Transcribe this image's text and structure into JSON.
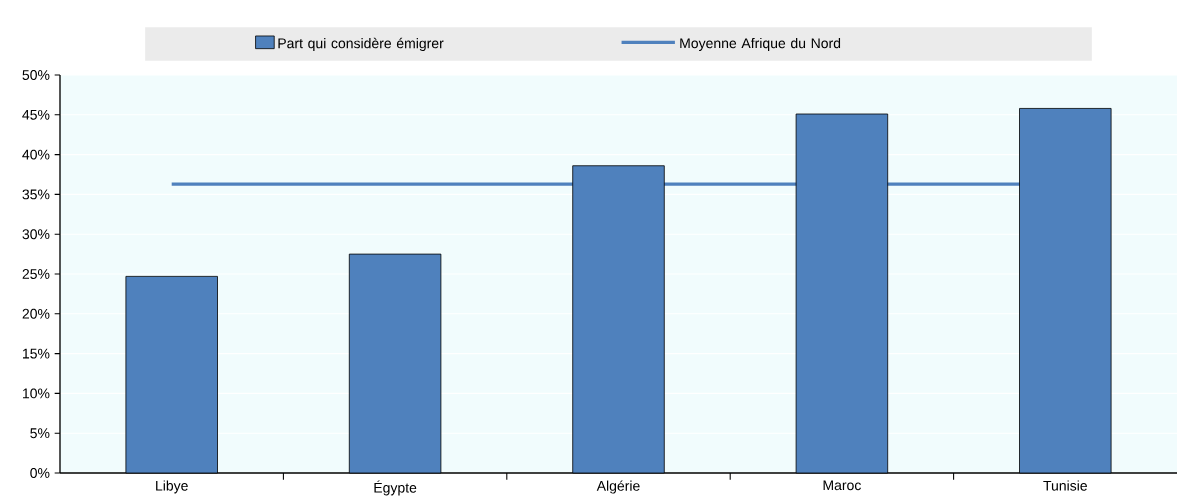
{
  "chart_data": {
    "type": "bar",
    "categories": [
      "Libye",
      "Égypte",
      "Algérie",
      "Maroc",
      "Tunisie"
    ],
    "series": [
      {
        "name": "Part qui considère émigrer",
        "type": "bar",
        "color": "#4f81bd",
        "values": [
          24.7,
          27.5,
          38.6,
          45.1,
          45.8
        ]
      }
    ],
    "ref_lines": [
      {
        "axis": "y",
        "value": 36.3,
        "label": "Moyenne Afrique du Nord",
        "color": "#4f81bd",
        "line_style": "solid"
      }
    ],
    "ylim": [
      0,
      50
    ],
    "yticks": [
      {
        "value": 0,
        "label": "0%"
      },
      {
        "value": 5,
        "label": "5%"
      },
      {
        "value": 10,
        "label": "10%"
      },
      {
        "value": 15,
        "label": "15%"
      },
      {
        "value": 20,
        "label": "20%"
      },
      {
        "value": 25,
        "label": "25%"
      },
      {
        "value": 30,
        "label": "30%"
      },
      {
        "value": 35,
        "label": "35%"
      },
      {
        "value": 40,
        "label": "40%"
      },
      {
        "value": 45,
        "label": "45%"
      },
      {
        "value": 50,
        "label": "50%"
      }
    ],
    "grid": "y",
    "legend": "top"
  }
}
